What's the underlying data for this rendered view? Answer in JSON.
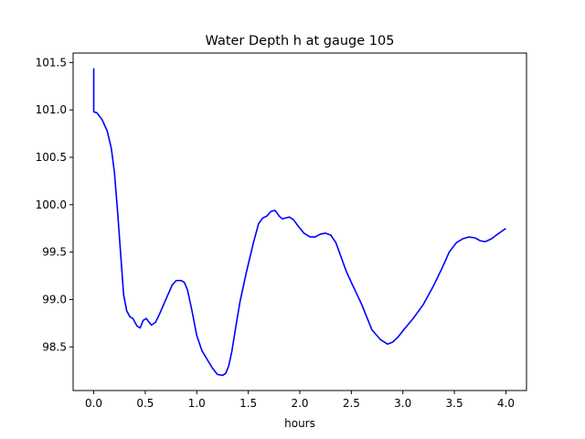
{
  "chart_data": {
    "type": "line",
    "title": "Water Depth h at gauge 105",
    "xlabel": "hours",
    "ylabel": "",
    "xlim": [
      -0.2,
      4.2
    ],
    "ylim": [
      98.04,
      101.6
    ],
    "xticks": [
      0.0,
      0.5,
      1.0,
      1.5,
      2.0,
      2.5,
      3.0,
      3.5,
      4.0
    ],
    "xtick_labels": [
      "0.0",
      "0.5",
      "1.0",
      "1.5",
      "2.0",
      "2.5",
      "3.0",
      "3.5",
      "4.0"
    ],
    "yticks": [
      98.5,
      99.0,
      99.5,
      100.0,
      100.5,
      101.0,
      101.5
    ],
    "ytick_labels": [
      "98.5",
      "99.0",
      "99.5",
      "100.0",
      "100.5",
      "101.0",
      "101.5"
    ],
    "grid": false,
    "series": [
      {
        "color": "#0000ff",
        "x": [
          0.0,
          0.0,
          0.0,
          0.03,
          0.08,
          0.13,
          0.17,
          0.2,
          0.23,
          0.26,
          0.29,
          0.32,
          0.35,
          0.38,
          0.42,
          0.45,
          0.48,
          0.51,
          0.53,
          0.56,
          0.6,
          0.64,
          0.7,
          0.76,
          0.8,
          0.85,
          0.88,
          0.91,
          0.95,
          1.0,
          1.05,
          1.1,
          1.15,
          1.2,
          1.25,
          1.28,
          1.31,
          1.34,
          1.38,
          1.42,
          1.48,
          1.55,
          1.6,
          1.64,
          1.68,
          1.72,
          1.76,
          1.8,
          1.83,
          1.86,
          1.9,
          1.94,
          1.98,
          2.04,
          2.1,
          2.15,
          2.2,
          2.25,
          2.3,
          2.35,
          2.4,
          2.45,
          2.5,
          2.6,
          2.7,
          2.78,
          2.85,
          2.9,
          2.95,
          3.0,
          3.1,
          3.2,
          3.3,
          3.38,
          3.45,
          3.52,
          3.58,
          3.64,
          3.7,
          3.75,
          3.8,
          3.86,
          3.92,
          4.0
        ],
        "y": [
          101.44,
          101.05,
          100.98,
          100.97,
          100.9,
          100.78,
          100.6,
          100.35,
          99.95,
          99.5,
          99.05,
          98.88,
          98.82,
          98.8,
          98.72,
          98.7,
          98.78,
          98.8,
          98.77,
          98.73,
          98.76,
          98.85,
          99.0,
          99.15,
          99.2,
          99.2,
          99.18,
          99.1,
          98.9,
          98.62,
          98.46,
          98.37,
          98.28,
          98.21,
          98.2,
          98.22,
          98.3,
          98.45,
          98.72,
          98.98,
          99.28,
          99.6,
          99.8,
          99.86,
          99.88,
          99.93,
          99.94,
          99.88,
          99.85,
          99.86,
          99.87,
          99.84,
          99.78,
          99.7,
          99.66,
          99.66,
          99.69,
          99.7,
          99.68,
          99.6,
          99.45,
          99.3,
          99.18,
          98.95,
          98.68,
          98.58,
          98.53,
          98.55,
          98.6,
          98.67,
          98.8,
          98.95,
          99.15,
          99.33,
          99.5,
          99.6,
          99.64,
          99.66,
          99.65,
          99.62,
          99.61,
          99.64,
          99.69,
          99.75
        ]
      }
    ]
  }
}
